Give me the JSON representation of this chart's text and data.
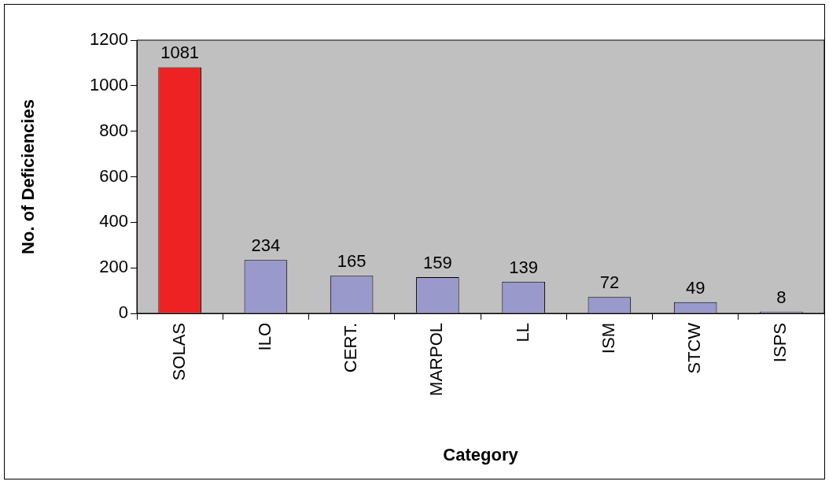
{
  "chart_data": {
    "type": "bar",
    "xlabel": "Category",
    "ylabel": "No. of Deficiencies",
    "categories": [
      "SOLAS",
      "ILO",
      "CERT.",
      "MARPOL",
      "LL",
      "ISM",
      "STCW",
      "ISPS"
    ],
    "values": [
      1081,
      234,
      165,
      159,
      139,
      72,
      49,
      8
    ],
    "colors": [
      "#ee2222",
      "#9999cc",
      "#9999cc",
      "#9999cc",
      "#9999cc",
      "#9999cc",
      "#9999cc",
      "#9999cc"
    ],
    "ylim": [
      0,
      1200
    ],
    "yticks": [
      0,
      200,
      400,
      600,
      800,
      1000,
      1200
    ],
    "data_labels": true,
    "grid": false,
    "legend": false
  }
}
